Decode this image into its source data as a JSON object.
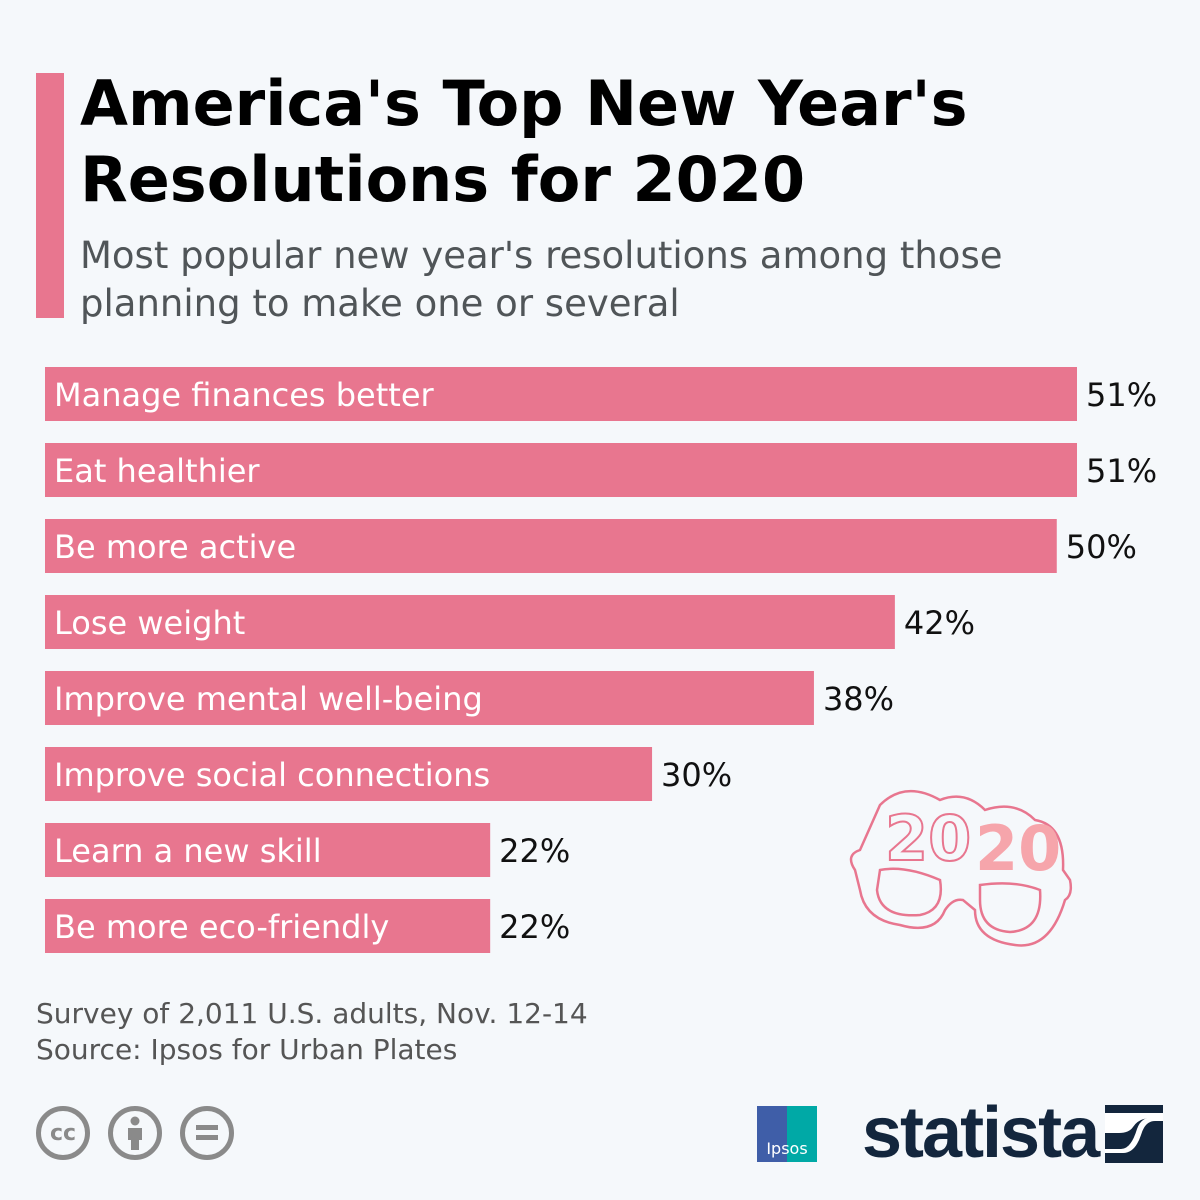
{
  "header": {
    "title": "America's Top New Year's Resolutions for 2020",
    "subtitle": "Most popular new year's resolutions among those planning to make one or several"
  },
  "colors": {
    "bar": "#e8768f",
    "accent": "#e8768f",
    "brand": "#13263d"
  },
  "chart_data": {
    "type": "bar",
    "orientation": "horizontal",
    "categories": [
      "Manage finances better",
      "Eat healthier",
      "Be more active",
      "Lose weight",
      "Improve mental well-being",
      "Improve social connections",
      "Learn a new skill",
      "Be more eco-friendly"
    ],
    "values": [
      51,
      51,
      50,
      42,
      38,
      30,
      22,
      22
    ],
    "value_labels": [
      "51%",
      "51%",
      "50%",
      "42%",
      "38%",
      "30%",
      "22%",
      "22%"
    ],
    "unit": "%",
    "grid": false
  },
  "decoration": {
    "glasses_text": "2020",
    "icon": "party-glasses-2020"
  },
  "footer": {
    "note": "Survey of 2,011 U.S. adults, Nov. 12-14",
    "source": "Source: Ipsos for Urban Plates",
    "license_icons": [
      "cc-icon",
      "attribution-icon",
      "no-derivatives-icon"
    ],
    "cc_text": "cc",
    "ipsos_logo": "Ipsos",
    "brand_logo": "statista"
  }
}
